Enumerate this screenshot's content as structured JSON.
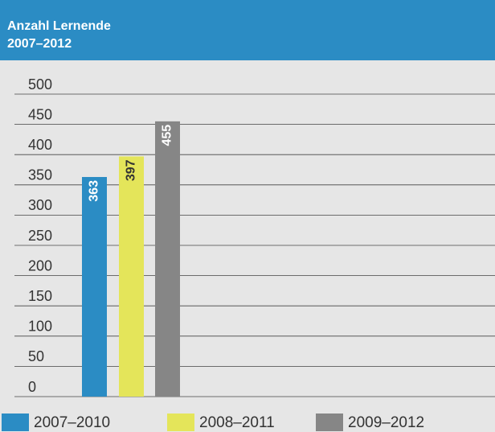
{
  "chart_data": {
    "type": "bar",
    "title": "Anzahl Lernende",
    "subtitle": "2007–2012",
    "categories": [
      null
    ],
    "series": [
      {
        "name": "2007–2010",
        "color": "#2b8cc4",
        "values": [
          363
        ]
      },
      {
        "name": "2008–2011",
        "color": "#e4e55a",
        "values": [
          397
        ]
      },
      {
        "name": "2009–2012",
        "color": "#868686",
        "values": [
          455
        ]
      }
    ],
    "ylim": [
      0,
      500
    ],
    "yticks": [
      0,
      50,
      100,
      150,
      200,
      250,
      300,
      350,
      400,
      450,
      500
    ],
    "grid": true
  }
}
